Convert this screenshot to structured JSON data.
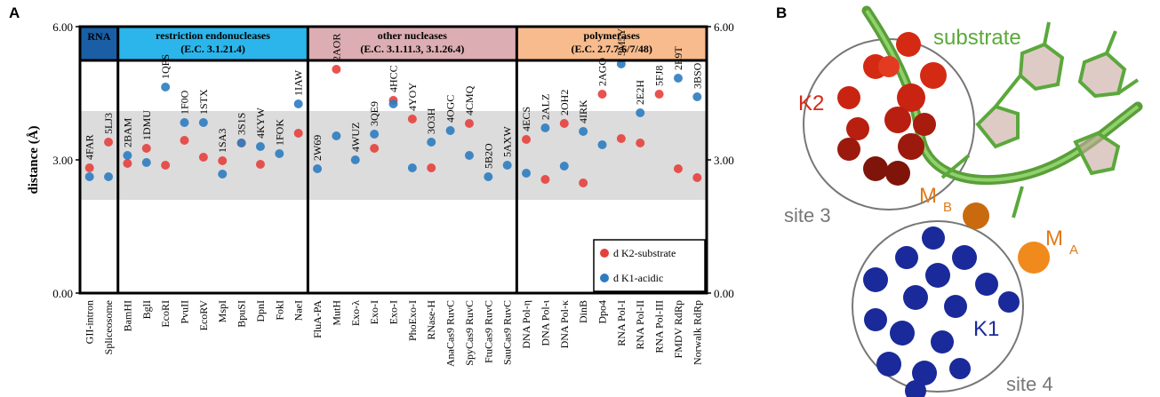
{
  "panel_labels": [
    "A",
    "B"
  ],
  "chart_data": {
    "type": "grouped-dot",
    "y_label": "distance (Å)",
    "ylim": [
      0,
      6
    ],
    "yticks": [
      {
        "value": 0,
        "label": "0.00"
      },
      {
        "value": 3,
        "label": "3.00"
      },
      {
        "value": 6,
        "label": "6.00"
      }
    ],
    "right_axis": true,
    "band": [
      2.1,
      4.1
    ],
    "band_color": "#dcdcdc",
    "legend": "lower right",
    "groups": [
      {
        "name": "RNA",
        "color": "#1a5ea6",
        "categories": [
          "GII-intron",
          "Spliceosome"
        ],
        "pdb": [
          "4FAR",
          "5LJ3"
        ]
      },
      {
        "name": "restriction endonucleases",
        "subtitle": "(E.C. 3.1.21.4)",
        "color": "#2bb5ea",
        "categories": [
          "BamHI",
          "BglI",
          "EcoRI",
          "PvuII",
          "EcoRV",
          "MspI",
          "BpuSI",
          "DpnI",
          "FokI",
          "NaeI"
        ],
        "pdb": [
          "2BAM",
          "1DMU",
          "1QPS",
          "1F0O",
          "1STX",
          "1SA3",
          "3S1S",
          "4KYW",
          "1FOK",
          "1IAW"
        ]
      },
      {
        "name": "other nucleases",
        "subtitle": "(E.C. 3.1.11.3, 3.1.26.4)",
        "color": "#dcadb2",
        "categories": [
          "FluA-PA",
          "MutH",
          "Exo-λ",
          "Exo-I",
          "Exo-I",
          "PhoExo-I",
          "RNase-H",
          "AnaCas9 RuvC",
          "SpyCas9 RuvC",
          "FtuCas9 RuvC",
          "SauCas9 RuvC"
        ],
        "pdb": [
          "2W69",
          "2AOR",
          "4WUZ",
          "3QE9",
          "4HCC",
          "4YOY",
          "3O3H",
          "4OGC",
          "4CMQ",
          "5B2O",
          "5AXW"
        ]
      },
      {
        "name": "polymerases",
        "subtitle": "(E.C. 2.7.7.6/7/48)",
        "color": "#f7bb8d",
        "categories": [
          "DNA Pol-η",
          "DNA Pol-ι",
          "DNA Pol-κ",
          "DinB",
          "Dpo4",
          "RNA Pol-I",
          "RNA Pol-II",
          "RNA Pol-III",
          "FMDV RdRp",
          "Norwalk RdRp"
        ],
        "pdb": [
          "4ECS",
          "2ALZ",
          "2OH2",
          "4IRK",
          "2AGO",
          "5M5Y",
          "2E2H",
          "5FJ8",
          "2E9T",
          "3BSO"
        ]
      }
    ],
    "series": [
      {
        "name": "d K2-substrate",
        "color": "#e5403d",
        "values": [
          [
            2.82,
            3.4
          ],
          [
            2.92,
            3.26,
            2.88,
            3.44,
            3.06,
            2.98,
            3.38,
            2.9,
            null,
            3.6
          ],
          [
            null,
            5.04,
            null,
            3.26,
            4.34,
            3.92,
            2.82,
            null,
            3.82,
            null,
            null
          ],
          [
            3.46,
            2.56,
            3.82,
            2.48,
            4.48,
            3.48,
            3.38,
            4.48,
            2.8,
            2.6
          ]
        ]
      },
      {
        "name": "d K1-acidic",
        "color": "#2c7cc0",
        "values": [
          [
            2.62,
            2.62
          ],
          [
            3.1,
            2.94,
            4.64,
            3.84,
            3.84,
            2.68,
            3.38,
            3.3,
            3.14,
            4.26
          ],
          [
            2.8,
            3.54,
            3.0,
            3.58,
            4.26,
            2.82,
            3.4,
            3.66,
            3.1,
            2.62,
            2.88
          ],
          [
            2.7,
            3.72,
            2.86,
            3.64,
            3.34,
            5.16,
            4.06,
            null,
            4.84,
            4.42
          ]
        ]
      }
    ]
  },
  "structure": {
    "substrate": "substrate",
    "k2": "K2",
    "site3": "site 3",
    "m": "M",
    "sub_b": "B",
    "sub_a": "A",
    "k1": "K1",
    "site4": "site 4"
  }
}
